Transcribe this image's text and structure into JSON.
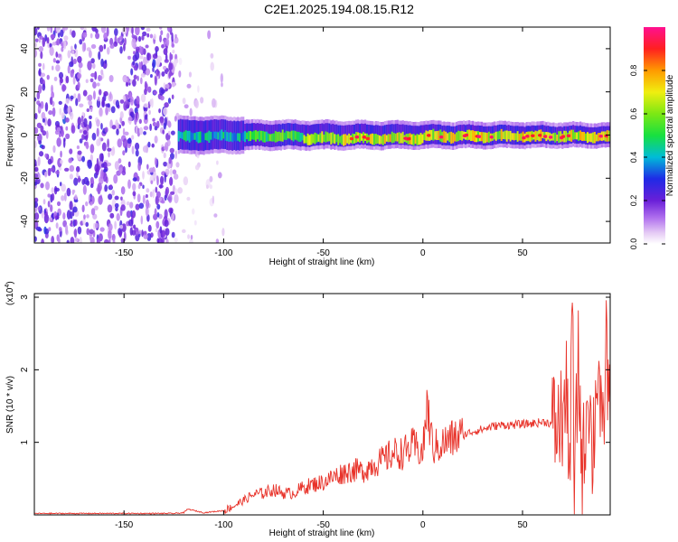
{
  "title": "C2E1.2025.194.08.15.R12",
  "chart_data": [
    {
      "type": "heatmap",
      "title": "C2E1.2025.194.08.15.R12",
      "xlabel": "Height of straight line (km)",
      "ylabel": "Frequency (Hz)",
      "xlim": [
        -195,
        94
      ],
      "ylim": [
        -50,
        50
      ],
      "x_ticks": [
        -150,
        -100,
        -50,
        0,
        50
      ],
      "x_tick_labels": [
        "-150",
        "-100",
        "-50",
        "0",
        "50"
      ],
      "y_ticks": [
        -40,
        -20,
        0,
        20,
        40
      ],
      "y_tick_labels": [
        "-40",
        "-20",
        "0",
        "20",
        "40"
      ],
      "colorbar": {
        "label": "Normalized spectral amplitude",
        "range": [
          0,
          1
        ],
        "ticks": [
          0.0,
          0.2,
          0.4,
          0.6,
          0.8
        ],
        "tick_labels": [
          "0.0",
          "0.2",
          "0.4",
          "0.6",
          "0.8"
        ],
        "colormap": "rainbow (white-violet-purple-blue-cyan-green-yellow-orange-red-magenta)"
      },
      "features": {
        "noise_region_x": [
          -195,
          -100
        ],
        "signal_start_x": -123,
        "signal_center_frequency_hz": 0,
        "signal_band_hz": [
          -5,
          5
        ],
        "peak_amplitude_region_x": [
          -40,
          85
        ]
      },
      "grid": false
    },
    {
      "type": "line",
      "xlabel": "Height of straight line (km)",
      "ylabel": "SNR (10 * v/v)",
      "y_scale_label": "(x10",
      "y_scale_exponent": "4",
      "xlim": [
        -195,
        94
      ],
      "ylim": [
        0,
        3.05
      ],
      "x_ticks": [
        -150,
        -100,
        -50,
        0,
        50
      ],
      "x_tick_labels": [
        "-150",
        "-100",
        "-50",
        "0",
        "50"
      ],
      "y_ticks": [
        1,
        2,
        3
      ],
      "y_tick_labels": [
        "1",
        "2",
        "3"
      ],
      "series_color": "#e8332a",
      "series": [
        {
          "x": [
            -195,
            -180,
            -160,
            -140,
            -125,
            -120,
            -118,
            -110,
            -100,
            -95,
            -90,
            -85,
            -80,
            -75,
            -70,
            -65,
            -60,
            -55,
            -50,
            -45,
            -40,
            -35,
            -30,
            -25,
            -20,
            -15,
            -10,
            -5,
            0,
            2,
            5,
            10,
            15,
            20,
            25,
            30,
            35,
            40,
            45,
            50,
            55,
            60,
            62,
            65,
            68,
            70,
            72,
            74,
            75,
            76,
            78,
            80,
            83,
            85,
            88,
            90,
            92,
            94
          ],
          "values": [
            0.02,
            0.02,
            0.02,
            0.02,
            0.02,
            0.03,
            0.08,
            0.03,
            0.06,
            0.12,
            0.2,
            0.28,
            0.3,
            0.35,
            0.3,
            0.3,
            0.38,
            0.42,
            0.45,
            0.52,
            0.58,
            0.62,
            0.6,
            0.7,
            0.75,
            0.85,
            0.85,
            0.95,
            0.85,
            1.5,
            0.92,
            0.98,
            1.05,
            1.1,
            1.15,
            1.18,
            1.22,
            1.24,
            1.24,
            1.25,
            1.26,
            1.28,
            1.28,
            1.25,
            1.2,
            1.35,
            1.6,
            0.8,
            3.05,
            0.2,
            2.2,
            0.5,
            1.9,
            0.8,
            2.2,
            0.7,
            2.4,
            1.1
          ]
        }
      ],
      "grid": false
    }
  ]
}
